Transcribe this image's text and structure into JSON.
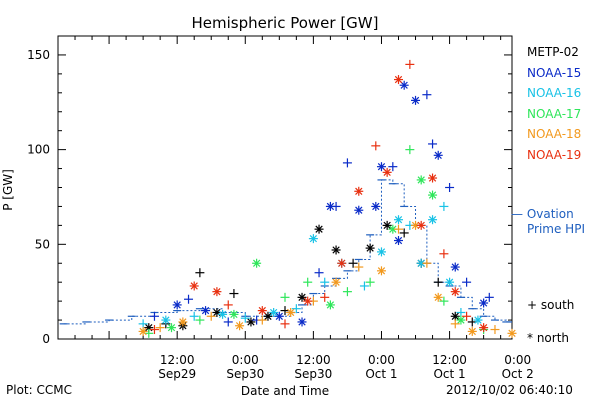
{
  "chart_data": {
    "type": "scatter",
    "title": "Hemispheric Power [GW]",
    "ylabel": "P [GW]",
    "xlabel": "Date and Time",
    "ylim": [
      0,
      160
    ],
    "xlim_hours": [
      -9,
      71
    ],
    "y_ticks": [
      0,
      50,
      100,
      150
    ],
    "x_ticks": [
      {
        "hour": 12,
        "time": "12:00",
        "date": "Sep29"
      },
      {
        "hour": 24,
        "time": "0:00",
        "date": "Sep30"
      },
      {
        "hour": 36,
        "time": "12:00",
        "date": "Sep30"
      },
      {
        "hour": 48,
        "time": "0:00",
        "date": "Oct 1"
      },
      {
        "hour": 60,
        "time": "12:00",
        "date": "Oct 1"
      },
      {
        "hour": 72,
        "time": "0:00",
        "date": "Oct 2"
      }
    ],
    "series": [
      {
        "name": "METP-02",
        "color": "#000000",
        "points": [
          {
            "x": 7,
            "y": 6,
            "m": "*"
          },
          {
            "x": 10,
            "y": 8,
            "m": "+"
          },
          {
            "x": 13,
            "y": 7,
            "m": "*"
          },
          {
            "x": 16,
            "y": 35,
            "m": "+"
          },
          {
            "x": 19,
            "y": 14,
            "m": "*"
          },
          {
            "x": 22,
            "y": 24,
            "m": "+"
          },
          {
            "x": 25,
            "y": 9,
            "m": "*"
          },
          {
            "x": 28,
            "y": 12,
            "m": "*"
          },
          {
            "x": 31,
            "y": 15,
            "m": "+"
          },
          {
            "x": 34,
            "y": 22,
            "m": "*"
          },
          {
            "x": 37,
            "y": 58,
            "m": "*"
          },
          {
            "x": 40,
            "y": 47,
            "m": "*"
          },
          {
            "x": 43,
            "y": 40,
            "m": "+"
          },
          {
            "x": 46,
            "y": 48,
            "m": "*"
          },
          {
            "x": 49,
            "y": 60,
            "m": "*"
          },
          {
            "x": 52,
            "y": 56,
            "m": "+"
          },
          {
            "x": 55,
            "y": 40,
            "m": "*"
          },
          {
            "x": 58,
            "y": 30,
            "m": "+"
          },
          {
            "x": 61,
            "y": 12,
            "m": "*"
          },
          {
            "x": 64,
            "y": 9,
            "m": "+"
          }
        ]
      },
      {
        "name": "NOAA-15",
        "color": "#0a2bc8",
        "points": [
          {
            "x": 8,
            "y": 12,
            "m": "+"
          },
          {
            "x": 12,
            "y": 18,
            "m": "*"
          },
          {
            "x": 14,
            "y": 21,
            "m": "+"
          },
          {
            "x": 17,
            "y": 15,
            "m": "*"
          },
          {
            "x": 21,
            "y": 9,
            "m": "+"
          },
          {
            "x": 26,
            "y": 10,
            "m": "+"
          },
          {
            "x": 30,
            "y": 12,
            "m": "*"
          },
          {
            "x": 34,
            "y": 9,
            "m": "*"
          },
          {
            "x": 37,
            "y": 35,
            "m": "+"
          },
          {
            "x": 39,
            "y": 70,
            "m": "*"
          },
          {
            "x": 40,
            "y": 70,
            "m": "+"
          },
          {
            "x": 42,
            "y": 93,
            "m": "+"
          },
          {
            "x": 44,
            "y": 68,
            "m": "*"
          },
          {
            "x": 47,
            "y": 70,
            "m": "*"
          },
          {
            "x": 48,
            "y": 91,
            "m": "*"
          },
          {
            "x": 50,
            "y": 91,
            "m": "+"
          },
          {
            "x": 51,
            "y": 52,
            "m": "*"
          },
          {
            "x": 52,
            "y": 134,
            "m": "*"
          },
          {
            "x": 54,
            "y": 126,
            "m": "*"
          },
          {
            "x": 56,
            "y": 129,
            "m": "+"
          },
          {
            "x": 57,
            "y": 103,
            "m": "+"
          },
          {
            "x": 58,
            "y": 97,
            "m": "*"
          },
          {
            "x": 60,
            "y": 80,
            "m": "+"
          },
          {
            "x": 61,
            "y": 38,
            "m": "*"
          },
          {
            "x": 63,
            "y": 30,
            "m": "+"
          },
          {
            "x": 66,
            "y": 19,
            "m": "*"
          },
          {
            "x": 67,
            "y": 22,
            "m": "+"
          }
        ]
      },
      {
        "name": "NOAA-16",
        "color": "#19c2e6",
        "points": [
          {
            "x": 6,
            "y": 8,
            "m": "+"
          },
          {
            "x": 10,
            "y": 10,
            "m": "*"
          },
          {
            "x": 15,
            "y": 12,
            "m": "+"
          },
          {
            "x": 20,
            "y": 13,
            "m": "*"
          },
          {
            "x": 24,
            "y": 11,
            "m": "+"
          },
          {
            "x": 29,
            "y": 14,
            "m": "*"
          },
          {
            "x": 33,
            "y": 16,
            "m": "+"
          },
          {
            "x": 36,
            "y": 53,
            "m": "*"
          },
          {
            "x": 38,
            "y": 30,
            "m": "+"
          },
          {
            "x": 41,
            "y": 40,
            "m": "*"
          },
          {
            "x": 45,
            "y": 28,
            "m": "+"
          },
          {
            "x": 48,
            "y": 46,
            "m": "*"
          },
          {
            "x": 51,
            "y": 63,
            "m": "*"
          },
          {
            "x": 53,
            "y": 60,
            "m": "+"
          },
          {
            "x": 55,
            "y": 40,
            "m": "*"
          },
          {
            "x": 57,
            "y": 63,
            "m": "*"
          },
          {
            "x": 59,
            "y": 70,
            "m": "+"
          },
          {
            "x": 60,
            "y": 30,
            "m": "*"
          },
          {
            "x": 62,
            "y": 14,
            "m": "+"
          },
          {
            "x": 65,
            "y": 10,
            "m": "*"
          }
        ]
      },
      {
        "name": "NOAA-17",
        "color": "#2ee65a",
        "points": [
          {
            "x": 7,
            "y": 3,
            "m": "+"
          },
          {
            "x": 11,
            "y": 6,
            "m": "*"
          },
          {
            "x": 16,
            "y": 10,
            "m": "+"
          },
          {
            "x": 22,
            "y": 13,
            "m": "*"
          },
          {
            "x": 26,
            "y": 40,
            "m": "*"
          },
          {
            "x": 31,
            "y": 22,
            "m": "+"
          },
          {
            "x": 35,
            "y": 30,
            "m": "+"
          },
          {
            "x": 39,
            "y": 18,
            "m": "*"
          },
          {
            "x": 42,
            "y": 25,
            "m": "+"
          },
          {
            "x": 46,
            "y": 30,
            "m": "+"
          },
          {
            "x": 50,
            "y": 58,
            "m": "*"
          },
          {
            "x": 53,
            "y": 100,
            "m": "+"
          },
          {
            "x": 55,
            "y": 84,
            "m": "*"
          },
          {
            "x": 57,
            "y": 76,
            "m": "*"
          },
          {
            "x": 59,
            "y": 20,
            "m": "+"
          },
          {
            "x": 62,
            "y": 10,
            "m": "*"
          },
          {
            "x": 66,
            "y": 5,
            "m": "+"
          }
        ]
      },
      {
        "name": "NOAA-18",
        "color": "#f2991e",
        "points": [
          {
            "x": 6,
            "y": 4,
            "m": "*"
          },
          {
            "x": 9,
            "y": 6,
            "m": "+"
          },
          {
            "x": 13,
            "y": 9,
            "m": "*"
          },
          {
            "x": 18,
            "y": 12,
            "m": "+"
          },
          {
            "x": 23,
            "y": 7,
            "m": "*"
          },
          {
            "x": 27,
            "y": 10,
            "m": "+"
          },
          {
            "x": 32,
            "y": 14,
            "m": "*"
          },
          {
            "x": 36,
            "y": 20,
            "m": "+"
          },
          {
            "x": 40,
            "y": 30,
            "m": "*"
          },
          {
            "x": 44,
            "y": 38,
            "m": "+"
          },
          {
            "x": 48,
            "y": 36,
            "m": "*"
          },
          {
            "x": 51,
            "y": 58,
            "m": "+"
          },
          {
            "x": 54,
            "y": 60,
            "m": "*"
          },
          {
            "x": 56,
            "y": 40,
            "m": "+"
          },
          {
            "x": 58,
            "y": 22,
            "m": "*"
          },
          {
            "x": 61,
            "y": 8,
            "m": "+"
          },
          {
            "x": 64,
            "y": 4,
            "m": "*"
          },
          {
            "x": 68,
            "y": 5,
            "m": "+"
          },
          {
            "x": 71,
            "y": 3,
            "m": "*"
          }
        ]
      },
      {
        "name": "NOAA-19",
        "color": "#e83010",
        "points": [
          {
            "x": 8,
            "y": 5,
            "m": "+"
          },
          {
            "x": 15,
            "y": 28,
            "m": "*"
          },
          {
            "x": 19,
            "y": 25,
            "m": "*"
          },
          {
            "x": 21,
            "y": 18,
            "m": "+"
          },
          {
            "x": 27,
            "y": 15,
            "m": "*"
          },
          {
            "x": 31,
            "y": 8,
            "m": "+"
          },
          {
            "x": 35,
            "y": 20,
            "m": "*"
          },
          {
            "x": 38,
            "y": 22,
            "m": "+"
          },
          {
            "x": 41,
            "y": 40,
            "m": "*"
          },
          {
            "x": 44,
            "y": 78,
            "m": "*"
          },
          {
            "x": 47,
            "y": 102,
            "m": "+"
          },
          {
            "x": 49,
            "y": 88,
            "m": "*"
          },
          {
            "x": 51,
            "y": 137,
            "m": "*"
          },
          {
            "x": 53,
            "y": 145,
            "m": "+"
          },
          {
            "x": 55,
            "y": 60,
            "m": "*"
          },
          {
            "x": 57,
            "y": 85,
            "m": "*"
          },
          {
            "x": 59,
            "y": 45,
            "m": "+"
          },
          {
            "x": 61,
            "y": 25,
            "m": "*"
          },
          {
            "x": 63,
            "y": 12,
            "m": "+"
          },
          {
            "x": 66,
            "y": 6,
            "m": "*"
          }
        ]
      }
    ],
    "ovation": {
      "name": "Ovation Prime HPI",
      "color": "#1f5fbf",
      "points": [
        {
          "x": -8,
          "y": 8
        },
        {
          "x": -4,
          "y": 9
        },
        {
          "x": 0,
          "y": 10
        },
        {
          "x": 4,
          "y": 12
        },
        {
          "x": 8,
          "y": 14
        },
        {
          "x": 12,
          "y": 15
        },
        {
          "x": 16,
          "y": 16
        },
        {
          "x": 20,
          "y": 14
        },
        {
          "x": 24,
          "y": 12
        },
        {
          "x": 28,
          "y": 12
        },
        {
          "x": 32,
          "y": 14
        },
        {
          "x": 34,
          "y": 18
        },
        {
          "x": 36,
          "y": 24
        },
        {
          "x": 38,
          "y": 28
        },
        {
          "x": 40,
          "y": 32
        },
        {
          "x": 42,
          "y": 36
        },
        {
          "x": 44,
          "y": 42
        },
        {
          "x": 46,
          "y": 55
        },
        {
          "x": 48,
          "y": 84
        },
        {
          "x": 50,
          "y": 82
        },
        {
          "x": 52,
          "y": 70
        },
        {
          "x": 54,
          "y": 60
        },
        {
          "x": 56,
          "y": 40
        },
        {
          "x": 58,
          "y": 30
        },
        {
          "x": 60,
          "y": 28
        },
        {
          "x": 62,
          "y": 22
        },
        {
          "x": 64,
          "y": 16
        },
        {
          "x": 66,
          "y": 12
        },
        {
          "x": 68,
          "y": 10
        },
        {
          "x": 70,
          "y": 9
        }
      ]
    }
  },
  "legend": {
    "entries": [
      {
        "label": "METP-02",
        "color": "#000000"
      },
      {
        "label": "NOAA-15",
        "color": "#0a2bc8"
      },
      {
        "label": "NOAA-16",
        "color": "#19c2e6"
      },
      {
        "label": "NOAA-17",
        "color": "#2ee65a"
      },
      {
        "label": "NOAA-18",
        "color": "#f2991e"
      },
      {
        "label": "NOAA-19",
        "color": "#e83010"
      }
    ],
    "ovation_line1": "— Ovation",
    "ovation_line2": "Prime HPI",
    "south_label": "+ south",
    "north_label": "* north"
  },
  "footer": {
    "plot_credit": "Plot: CCMC",
    "timestamp": "2012/10/02 06:40:10"
  }
}
